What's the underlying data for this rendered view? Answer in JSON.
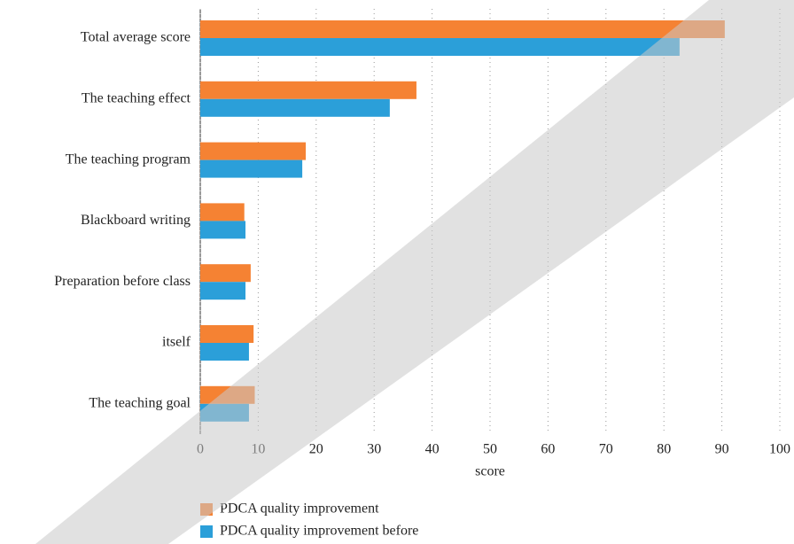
{
  "chart_data": {
    "type": "barh",
    "categories": [
      "Total average score",
      "The teaching effect",
      "The teaching program",
      "Blackboard writing",
      "Preparation before class",
      "itself",
      "The teaching goal"
    ],
    "series": [
      {
        "name": "PDCA quality improvement",
        "color": "#f58233",
        "values": [
          90.5,
          37.3,
          18.2,
          7.6,
          8.7,
          9.2,
          9.4
        ]
      },
      {
        "name": "PDCA quality improvement before",
        "color": "#2b9fd9",
        "values": [
          82.7,
          32.7,
          17.6,
          7.8,
          7.8,
          8.4,
          8.4
        ]
      }
    ],
    "xlabel": "score",
    "xlim": [
      0,
      100
    ],
    "xticks": [
      0,
      10,
      20,
      30,
      40,
      50,
      60,
      70,
      80,
      90,
      100
    ],
    "grid": true,
    "legend": "bottom"
  }
}
